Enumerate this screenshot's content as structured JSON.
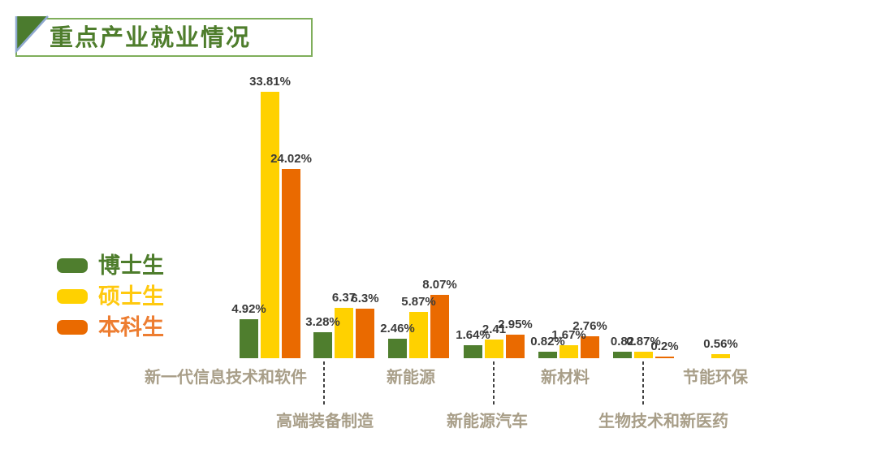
{
  "slide": {
    "title": "重点产业就业情况"
  },
  "legend": {
    "items": [
      {
        "label": "博士生",
        "swatch_color": "#4F7E2E",
        "text_color": "#4E7D2C"
      },
      {
        "label": "硕士生",
        "swatch_color": "#FFD100",
        "text_color": "#FFC90F"
      },
      {
        "label": "本科生",
        "swatch_color": "#EA6A00",
        "text_color": "#ED7D31"
      }
    ]
  },
  "chart_data": {
    "type": "bar",
    "title": "重点产业就业情况",
    "unit": "%",
    "categories": [
      "新一代信息技术和软件",
      "高端装备制造",
      "新能源",
      "新能源汽车",
      "新材料",
      "生物技术和新医药",
      "节能环保"
    ],
    "series": [
      {
        "name": "博士生",
        "color": "#4F7E2E",
        "values": [
          4.92,
          3.28,
          2.46,
          1.64,
          0.82,
          0.82,
          null
        ],
        "labels": [
          "4.92%",
          "3.28%",
          "2.46%",
          "1.64%",
          "0.82%",
          "0.82",
          ""
        ]
      },
      {
        "name": "硕士生",
        "color": "#FFD100",
        "values": [
          33.81,
          6.37,
          5.87,
          2.41,
          1.67,
          0.87,
          0.56
        ],
        "labels": [
          "33.81%",
          "6.37",
          "5.87%",
          "2.41",
          "1.67%",
          "0.87%",
          "0.56%"
        ]
      },
      {
        "name": "本科生",
        "color": "#EA6A00",
        "values": [
          24.02,
          6.3,
          8.07,
          2.95,
          2.76,
          0.2,
          null
        ],
        "labels": [
          "24.02%",
          "6.3%",
          "8.07%",
          "2.95%",
          "2.76%",
          "0.2%",
          ""
        ]
      }
    ],
    "ylim": [
      0,
      35
    ],
    "grid": false,
    "axes_visible": false,
    "legend_position": "middle-left",
    "data_label_color": "#3B3B3B",
    "category_label_color": "#A89E88",
    "category_label_rows": [
      0,
      1,
      0,
      1,
      0,
      1,
      0
    ]
  }
}
